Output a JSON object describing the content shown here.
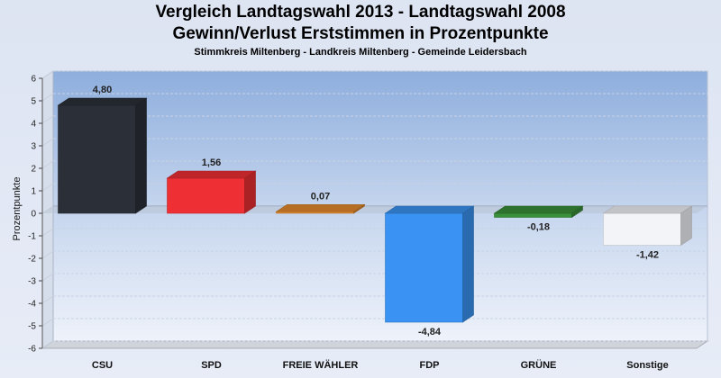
{
  "chart_data": {
    "type": "bar",
    "title": "Vergleich Landtagswahl 2013 - Landtagswahl 2008",
    "subtitle": "Gewinn/Verlust Erststimmen in Prozentpunkte",
    "subtitle2": "Stimmkreis Miltenberg - Landkreis Miltenberg - Gemeinde Leidersbach",
    "xlabel": "",
    "ylabel": "Prozentpunkte",
    "ylim": [
      -6,
      6
    ],
    "yticks": [
      6,
      5,
      4,
      3,
      2,
      1,
      0,
      -1,
      -2,
      -3,
      -4,
      -5,
      -6
    ],
    "grid": true,
    "categories": [
      "CSU",
      "SPD",
      "FREIE WÄHLER",
      "FDP",
      "GRÜNE",
      "Sonstige"
    ],
    "values": [
      4.8,
      1.56,
      0.07,
      -4.84,
      -0.18,
      -1.42
    ],
    "value_labels": [
      "4,80",
      "1,56",
      "0,07",
      "-4,84",
      "-0,18",
      "-1,42"
    ],
    "colors": [
      "#2b2f38",
      "#ee2f33",
      "#e38a2e",
      "#3a93f2",
      "#3a8f3a",
      "#f2f4f8"
    ]
  }
}
